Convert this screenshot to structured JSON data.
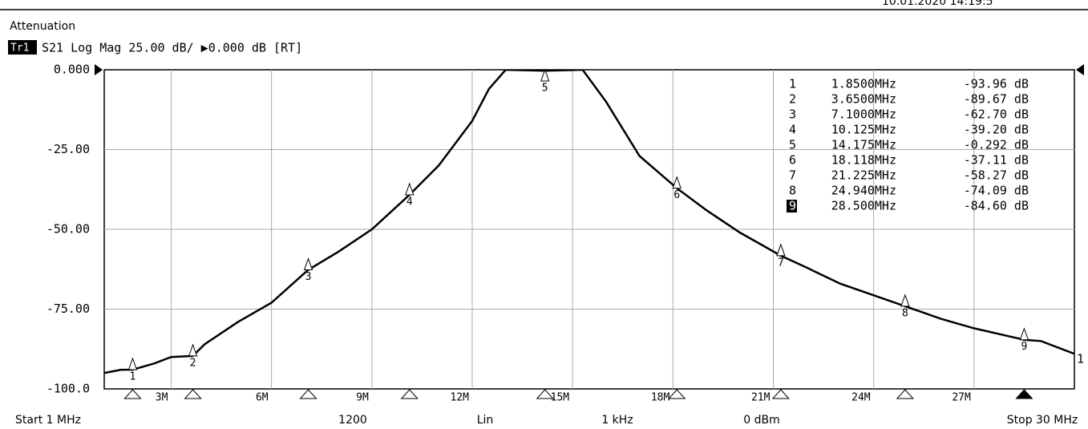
{
  "chart_data": {
    "type": "line",
    "title": "Attenuation",
    "timestamp": "10.01.2020 14:19:5",
    "trace_label": "Tr1",
    "trace_info": "S21 Log Mag 25.00 dB/ ▶0.000 dB [RT]",
    "trace_end_label": "1",
    "footer": [
      "Start 1 MHz",
      "1200",
      "Lin",
      "1 kHz",
      "0 dBm",
      "Stop 30 MHz"
    ],
    "color": "#000000",
    "grid": true,
    "x": [
      1,
      1.5,
      1.85,
      2.5,
      3,
      3.65,
      4,
      5,
      6,
      7.1,
      8,
      9,
      10.125,
      11,
      12,
      12.5,
      13,
      14.175,
      15.3,
      16,
      17,
      18.118,
      19,
      20,
      21.225,
      22,
      23,
      24.94,
      26,
      27,
      28.5,
      29,
      30
    ],
    "values": [
      -95,
      -94,
      -93.96,
      -92,
      -90,
      -89.67,
      -86,
      -79,
      -73,
      -62.7,
      -57,
      -50,
      -39.2,
      -30,
      -16,
      -6,
      0,
      -0.292,
      0,
      -10,
      -27,
      -37.11,
      -44,
      -51,
      -58.27,
      -62,
      -67,
      -74.09,
      -78,
      -81,
      -84.6,
      -85,
      -89
    ],
    "xlim": [
      1,
      30
    ],
    "ylim": [
      -100,
      0
    ],
    "xticks": [
      {
        "value": 3,
        "label": "3M"
      },
      {
        "value": 6,
        "label": "6M"
      },
      {
        "value": 9,
        "label": "9M"
      },
      {
        "value": 12,
        "label": "12M"
      },
      {
        "value": 15,
        "label": "15M"
      },
      {
        "value": 18,
        "label": "18M"
      },
      {
        "value": 21,
        "label": "21M"
      },
      {
        "value": 24,
        "label": "24M"
      },
      {
        "value": 27,
        "label": "27M"
      }
    ],
    "yticks": [
      {
        "value": 0,
        "label": "0.000"
      },
      {
        "value": -25,
        "label": "-25.00"
      },
      {
        "value": -50,
        "label": "-50.00"
      },
      {
        "value": -75,
        "label": "-75.00"
      },
      {
        "value": -100,
        "label": "-100.0"
      }
    ],
    "markers": {
      "labels": [
        "1",
        "2",
        "3",
        "4",
        "5",
        "6",
        "7",
        "8",
        "9"
      ],
      "x": [
        1.85,
        3.65,
        7.1,
        10.125,
        14.175,
        18.118,
        21.225,
        24.94,
        28.5
      ],
      "x_labels": [
        "1.8500MHz",
        "3.6500MHz",
        "7.1000MHz",
        "10.125MHz",
        "14.175MHz",
        "18.118MHz",
        "21.225MHz",
        "24.940MHz",
        "28.500MHz"
      ],
      "values": [
        -93.96,
        -89.67,
        -62.7,
        -39.2,
        -0.292,
        -37.11,
        -58.27,
        -74.09,
        -84.6
      ],
      "value_labels": [
        "-93.96 dB",
        "-89.67 dB",
        "-62.70 dB",
        "-39.20 dB",
        "-0.292 dB",
        "-37.11 dB",
        "-58.27 dB",
        "-74.09 dB",
        "-84.60 dB"
      ]
    }
  }
}
